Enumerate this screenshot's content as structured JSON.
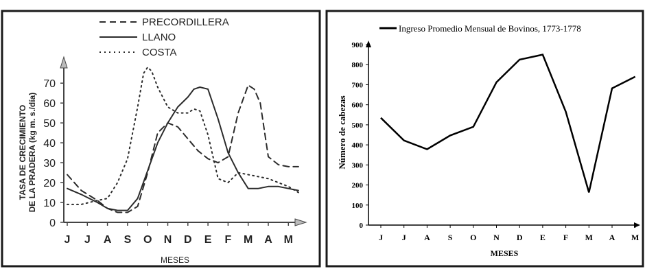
{
  "charts": [
    {
      "type": "line",
      "title": "",
      "xlabel": "MESES",
      "ylabel_line1": "TASA DE CRECIMIENTO",
      "ylabel_line2": "DE LA PRADERA (kg m. s./día)",
      "categories": [
        "J",
        "J",
        "A",
        "S",
        "O",
        "N",
        "D",
        "E",
        "F",
        "M",
        "A",
        "M"
      ],
      "y_ticks": [
        0,
        10,
        20,
        30,
        40,
        50,
        60,
        70
      ],
      "ylim": [
        0,
        78
      ],
      "legend": [
        "PRECORDILLERA",
        "LLANO",
        "COSTA"
      ],
      "series": [
        {
          "name": "PRECORDILLERA",
          "style": "dashed",
          "color": "#2b2b2b",
          "x": [
            0,
            0.7,
            1.5,
            2.0,
            2.5,
            3.0,
            3.5,
            4.0,
            4.5,
            5.0,
            5.5,
            6.0,
            6.5,
            7.0,
            7.5,
            8.0,
            8.5,
            9.0,
            9.3,
            9.6,
            10.0,
            10.5,
            11.0,
            11.5
          ],
          "y": [
            24,
            16,
            11,
            7,
            5,
            5,
            8,
            25,
            45,
            50,
            48,
            42,
            36,
            32,
            30,
            33,
            55,
            69,
            67,
            60,
            33,
            29,
            28,
            28
          ]
        },
        {
          "name": "LLANO",
          "style": "solid",
          "color": "#2b2b2b",
          "x": [
            0,
            0.7,
            1.5,
            2.0,
            2.5,
            3.0,
            3.5,
            4.0,
            4.5,
            5.0,
            5.5,
            6.0,
            6.3,
            6.6,
            7.0,
            7.5,
            8.0,
            8.5,
            9.0,
            9.5,
            10.0,
            10.5,
            11.0,
            11.5
          ],
          "y": [
            17,
            14,
            10,
            7,
            6,
            6,
            12,
            26,
            40,
            50,
            58,
            63,
            67,
            68,
            67,
            52,
            35,
            25,
            17,
            17,
            18,
            18,
            17,
            16
          ]
        },
        {
          "name": "COSTA",
          "style": "dotted",
          "color": "#2b2b2b",
          "x": [
            0,
            0.7,
            1.5,
            2.0,
            2.5,
            3.0,
            3.5,
            3.8,
            4.0,
            4.2,
            4.5,
            5.0,
            5.5,
            6.0,
            6.3,
            6.6,
            7.0,
            7.5,
            8.0,
            8.5,
            9.0,
            9.5,
            10.0,
            10.5,
            11.0,
            11.5
          ],
          "y": [
            9,
            9,
            11,
            12,
            20,
            32,
            58,
            75,
            78,
            76,
            68,
            58,
            55,
            55,
            57,
            56,
            44,
            22,
            20,
            25,
            24,
            23,
            22,
            20,
            18,
            15
          ]
        }
      ]
    },
    {
      "type": "line",
      "title": "",
      "xlabel": "MESES",
      "ylabel": "Número de cabezas",
      "categories": [
        "J",
        "J",
        "A",
        "S",
        "O",
        "N",
        "D",
        "E",
        "F",
        "M",
        "A",
        "M"
      ],
      "y_ticks": [
        0,
        100,
        200,
        300,
        400,
        500,
        600,
        700,
        800,
        900
      ],
      "ylim": [
        0,
        900
      ],
      "legend": [
        "Ingreso Promedio Mensual de Bovinos, 1773-1778"
      ],
      "series": [
        {
          "name": "Ingreso Promedio Mensual de Bovinos, 1773-1778",
          "style": "solid",
          "color": "#000000",
          "values": [
            535,
            422,
            378,
            447,
            490,
            712,
            825,
            850,
            565,
            163,
            682,
            740
          ]
        }
      ]
    }
  ]
}
